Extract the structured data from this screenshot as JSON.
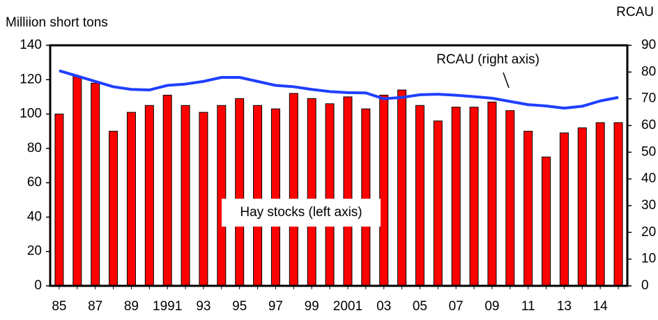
{
  "chart_data": {
    "type": "bar",
    "y_label": "Milliion short tons",
    "y2_label": "RCAU",
    "annotations": [
      "RCAU (right axis)",
      "Hay stocks (left axis)"
    ],
    "categories": [
      "85",
      null,
      "87",
      null,
      "89",
      null,
      "1991",
      null,
      "93",
      null,
      "95",
      null,
      "97",
      null,
      "99",
      null,
      "2001",
      null,
      "03",
      null,
      "05",
      null,
      "07",
      null,
      "09",
      null,
      "11",
      null,
      "13",
      null,
      "14",
      null
    ],
    "series": [
      {
        "name": "Hay stocks (left axis)",
        "color": "#ff0000",
        "values": [
          100,
          122,
          118,
          90,
          101,
          105,
          111,
          105,
          101,
          105,
          109,
          105,
          103,
          112,
          109,
          106,
          110,
          103,
          111,
          114,
          105,
          96,
          104,
          104,
          107,
          102,
          90,
          75,
          89,
          92,
          95,
          95
        ]
      },
      {
        "name": "RCAU (right axis)",
        "color": "#1f3fff",
        "axis": "y2",
        "type": "line",
        "values": [
          80.5,
          78.5,
          76.5,
          74.5,
          73.5,
          73.3,
          75,
          75.5,
          76.5,
          78,
          78,
          76.5,
          75,
          74.5,
          73.5,
          72.7,
          72.3,
          72.2,
          70,
          70.5,
          71.5,
          71.7,
          71.3,
          70.8,
          70.2,
          69,
          67.8,
          67.3,
          66.5,
          67.2,
          69.2,
          70.5
        ]
      }
    ],
    "ylim": [
      0,
      140
    ],
    "yticks": [
      0,
      20,
      40,
      60,
      80,
      100,
      120,
      140
    ],
    "y2lim": [
      0,
      90
    ],
    "y2ticks": [
      0,
      10,
      20,
      30,
      40,
      50,
      60,
      70,
      80,
      90
    ]
  }
}
